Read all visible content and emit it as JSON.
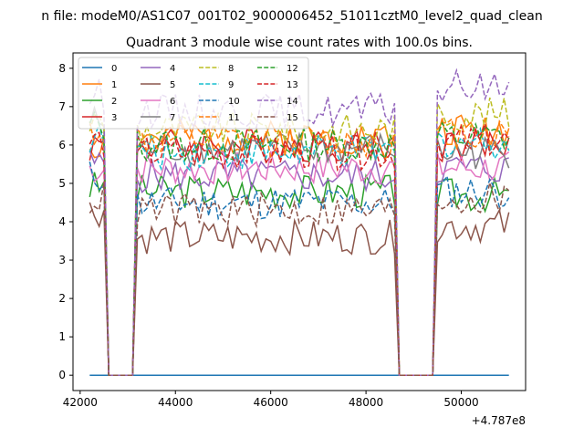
{
  "chart_data": {
    "type": "line",
    "suptitle": "n file: modeM0/AS1C07_001T02_9000006452_51011cztM0_level2_quad_clean",
    "title": "Quadrant 3 module wise count rates with 100.0s bins.",
    "xlabel": "",
    "ylabel": "",
    "x_offset_label": "+4.787e8",
    "xlim": [
      41850,
      51350
    ],
    "ylim": [
      -0.4,
      8.4
    ],
    "x_ticks": [
      42000,
      44000,
      46000,
      48000,
      50000
    ],
    "x_tick_labels": [
      "42000",
      "44000",
      "46000",
      "48000",
      "50000"
    ],
    "y_ticks": [
      0,
      1,
      2,
      3,
      4,
      5,
      6,
      7,
      8
    ],
    "y_tick_labels": [
      "0",
      "1",
      "2",
      "3",
      "4",
      "5",
      "6",
      "7",
      "8"
    ],
    "grid": false,
    "legend_position": "top-left",
    "legend_columns": 4,
    "series": [
      {
        "name": "0",
        "color": "#1f77b4",
        "dash": "solid"
      },
      {
        "name": "1",
        "color": "#ff7f0e",
        "dash": "solid"
      },
      {
        "name": "2",
        "color": "#2ca02c",
        "dash": "solid"
      },
      {
        "name": "3",
        "color": "#d62728",
        "dash": "solid"
      },
      {
        "name": "4",
        "color": "#9467bd",
        "dash": "solid"
      },
      {
        "name": "5",
        "color": "#8c564b",
        "dash": "solid"
      },
      {
        "name": "6",
        "color": "#e377c2",
        "dash": "solid"
      },
      {
        "name": "7",
        "color": "#7f7f7f",
        "dash": "solid"
      },
      {
        "name": "8",
        "color": "#bcbd22",
        "dash": "dashed"
      },
      {
        "name": "9",
        "color": "#17becf",
        "dash": "dashed"
      },
      {
        "name": "10",
        "color": "#1f77b4",
        "dash": "dashed"
      },
      {
        "name": "11",
        "color": "#ff7f0e",
        "dash": "dashed"
      },
      {
        "name": "12",
        "color": "#2ca02c",
        "dash": "dashed"
      },
      {
        "name": "13",
        "color": "#d62728",
        "dash": "dashed"
      },
      {
        "name": "14",
        "color": "#9467bd",
        "dash": "dashed"
      },
      {
        "name": "15",
        "color": "#8c564b",
        "dash": "dashed"
      }
    ],
    "series_profiles": [
      {
        "a": 0.0,
        "b": 0.0,
        "c": 0.0,
        "seed": 1
      },
      {
        "a": 6.0,
        "b": 6.2,
        "c": 6.4,
        "seed": 2
      },
      {
        "a": 4.9,
        "b": 4.8,
        "c": 4.7,
        "seed": 3
      },
      {
        "a": 6.0,
        "b": 6.0,
        "c": 6.0,
        "seed": 4
      },
      {
        "a": 5.5,
        "b": 5.2,
        "c": 5.4,
        "seed": 5
      },
      {
        "a": 4.3,
        "b": 3.6,
        "c": 3.9,
        "seed": 6
      },
      {
        "a": 5.4,
        "b": 5.4,
        "c": 5.4,
        "seed": 7
      },
      {
        "a": 6.6,
        "b": 5.9,
        "c": 5.8,
        "seed": 8
      },
      {
        "a": 6.6,
        "b": 6.4,
        "c": 6.8,
        "seed": 9
      },
      {
        "a": 6.2,
        "b": 5.8,
        "c": 6.1,
        "seed": 10
      },
      {
        "a": 5.2,
        "b": 4.5,
        "c": 4.8,
        "seed": 11
      },
      {
        "a": 6.4,
        "b": 6.1,
        "c": 6.3,
        "seed": 12
      },
      {
        "a": 6.5,
        "b": 6.0,
        "c": 6.2,
        "seed": 13
      },
      {
        "a": 6.1,
        "b": 5.8,
        "c": 6.1,
        "seed": 14
      },
      {
        "a": 7.3,
        "b": 6.9,
        "c": 7.5,
        "seed": 15
      },
      {
        "a": 4.6,
        "b": 4.3,
        "c": 4.6,
        "seed": 16
      }
    ],
    "segments": [
      {
        "x_start": 42200,
        "x_end": 42500,
        "profile": "a"
      },
      {
        "x_start": 43200,
        "x_end": 48600,
        "profile": "b"
      },
      {
        "x_start": 49500,
        "x_end": 51000,
        "profile": "c"
      }
    ],
    "gaps": [
      {
        "x_start": 42600,
        "x_end": 43100,
        "value": 0
      },
      {
        "x_start": 48700,
        "x_end": 49400,
        "value": 0
      }
    ],
    "noise_amplitude": 0.45
  }
}
